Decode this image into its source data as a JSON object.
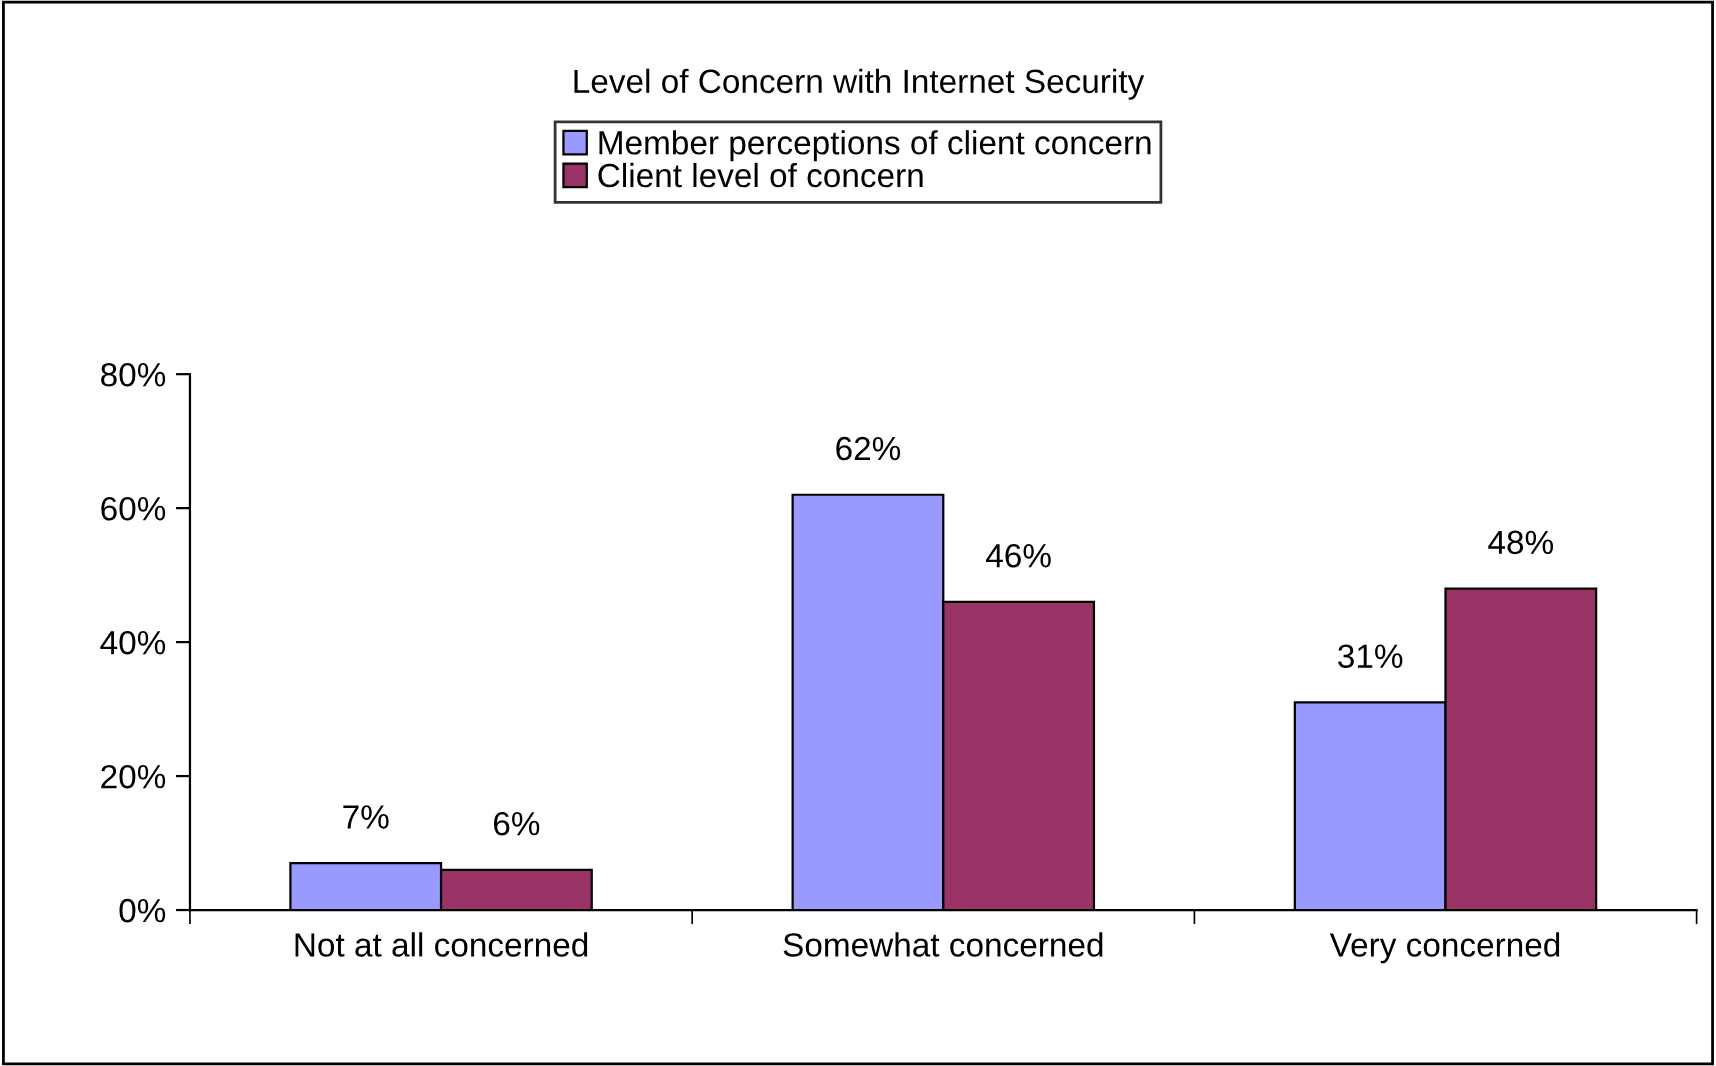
{
  "chart_data": {
    "type": "bar",
    "title": "Level of Concern with Internet Security",
    "categories": [
      "Not at all concerned",
      "Somewhat concerned",
      "Very concerned"
    ],
    "series": [
      {
        "name": "Member perceptions of client concern",
        "color": "#9999ff",
        "values": [
          7,
          62,
          31
        ],
        "value_labels": [
          "7%",
          "62%",
          "31%"
        ]
      },
      {
        "name": "Client level of concern",
        "color": "#993366",
        "values": [
          6,
          46,
          48
        ],
        "value_labels": [
          "6%",
          "46%",
          "48%"
        ]
      }
    ],
    "ylim": [
      0,
      80
    ],
    "yticks": [
      {
        "value": 0,
        "label": "0%"
      },
      {
        "value": 20,
        "label": "20%"
      },
      {
        "value": 40,
        "label": "40%"
      },
      {
        "value": 60,
        "label": "60%"
      },
      {
        "value": 80,
        "label": "80%"
      }
    ],
    "grid": false,
    "legend": "top"
  }
}
